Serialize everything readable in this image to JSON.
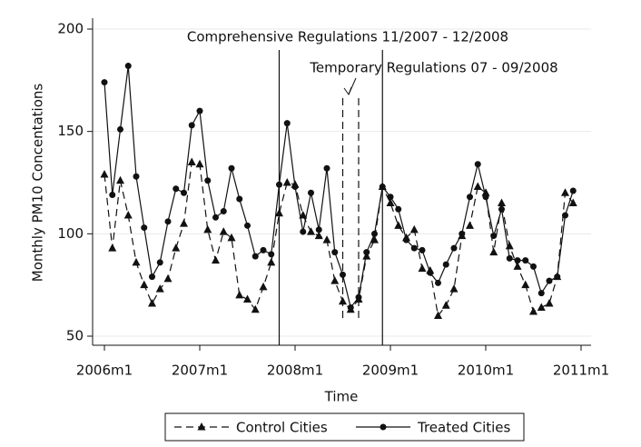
{
  "chart_data": {
    "type": "line",
    "ylabel": "Monthly PM10 Concentations",
    "xlabel": "Time",
    "x": [
      "2006m1",
      "2006m2",
      "2006m3",
      "2006m4",
      "2006m5",
      "2006m6",
      "2006m7",
      "2006m8",
      "2006m9",
      "2006m10",
      "2006m11",
      "2006m12",
      "2007m1",
      "2007m2",
      "2007m3",
      "2007m4",
      "2007m5",
      "2007m6",
      "2007m7",
      "2007m8",
      "2007m9",
      "2007m10",
      "2007m11",
      "2007m12",
      "2008m1",
      "2008m2",
      "2008m3",
      "2008m4",
      "2008m5",
      "2008m6",
      "2008m7",
      "2008m8",
      "2008m9",
      "2008m10",
      "2008m11",
      "2008m12",
      "2009m1",
      "2009m2",
      "2009m3",
      "2009m4",
      "2009m5",
      "2009m6",
      "2009m7",
      "2009m8",
      "2009m9",
      "2009m10",
      "2009m11",
      "2009m12",
      "2010m1",
      "2010m2",
      "2010m3",
      "2010m4",
      "2010m5",
      "2010m6",
      "2010m7",
      "2010m8",
      "2010m9",
      "2010m10",
      "2010m11",
      "2010m12"
    ],
    "series": [
      {
        "name": "Control Cities",
        "color": "#111111",
        "dash": true,
        "marker": "triangle",
        "values": [
          129,
          93,
          126,
          109,
          86,
          75,
          66,
          73,
          78,
          93,
          105,
          135,
          134,
          102,
          87,
          101,
          98,
          70,
          68,
          63,
          74,
          86,
          110,
          125,
          124,
          109,
          101,
          99,
          97,
          77,
          67,
          63,
          68,
          89,
          97,
          123,
          115,
          104,
          98,
          102,
          83,
          82,
          60,
          65,
          73,
          99,
          104,
          123,
          120,
          91,
          115,
          94,
          84,
          75,
          62,
          64,
          66,
          79,
          120,
          115
        ]
      },
      {
        "name": "Treated Cities",
        "color": "#111111",
        "dash": false,
        "marker": "circle",
        "values": [
          174,
          119,
          151,
          182,
          128,
          103,
          79,
          86,
          106,
          122,
          120,
          153,
          160,
          126,
          108,
          111,
          132,
          117,
          104,
          89,
          92,
          90,
          124,
          154,
          123,
          101,
          120,
          102,
          132,
          91,
          80,
          64,
          69,
          91,
          100,
          123,
          118,
          112,
          97,
          93,
          92,
          81,
          76,
          85,
          93,
          100,
          118,
          134,
          118,
          99,
          112,
          88,
          87,
          87,
          84,
          71,
          77,
          79,
          109,
          121
        ]
      }
    ],
    "xlim": [
      "2006m1",
      "2011m1"
    ],
    "xticks": [
      "2006m1",
      "2007m1",
      "2008m1",
      "2009m1",
      "2010m1",
      "2011m1"
    ],
    "ylim": [
      50,
      200
    ],
    "yticks": [
      50,
      100,
      150,
      200
    ],
    "grid": true,
    "vlines": [
      {
        "x": "2007m11",
        "dash": false
      },
      {
        "x": "2008m7",
        "dash": true
      },
      {
        "x": "2008m9",
        "dash": true
      },
      {
        "x": "2008m12",
        "dash": false
      }
    ],
    "annotations": [
      "Comprehensive Regulations 11/2007 - 12/2008",
      "Temporary Regulations 07 - 09/2008"
    ],
    "legend": "bottom"
  }
}
